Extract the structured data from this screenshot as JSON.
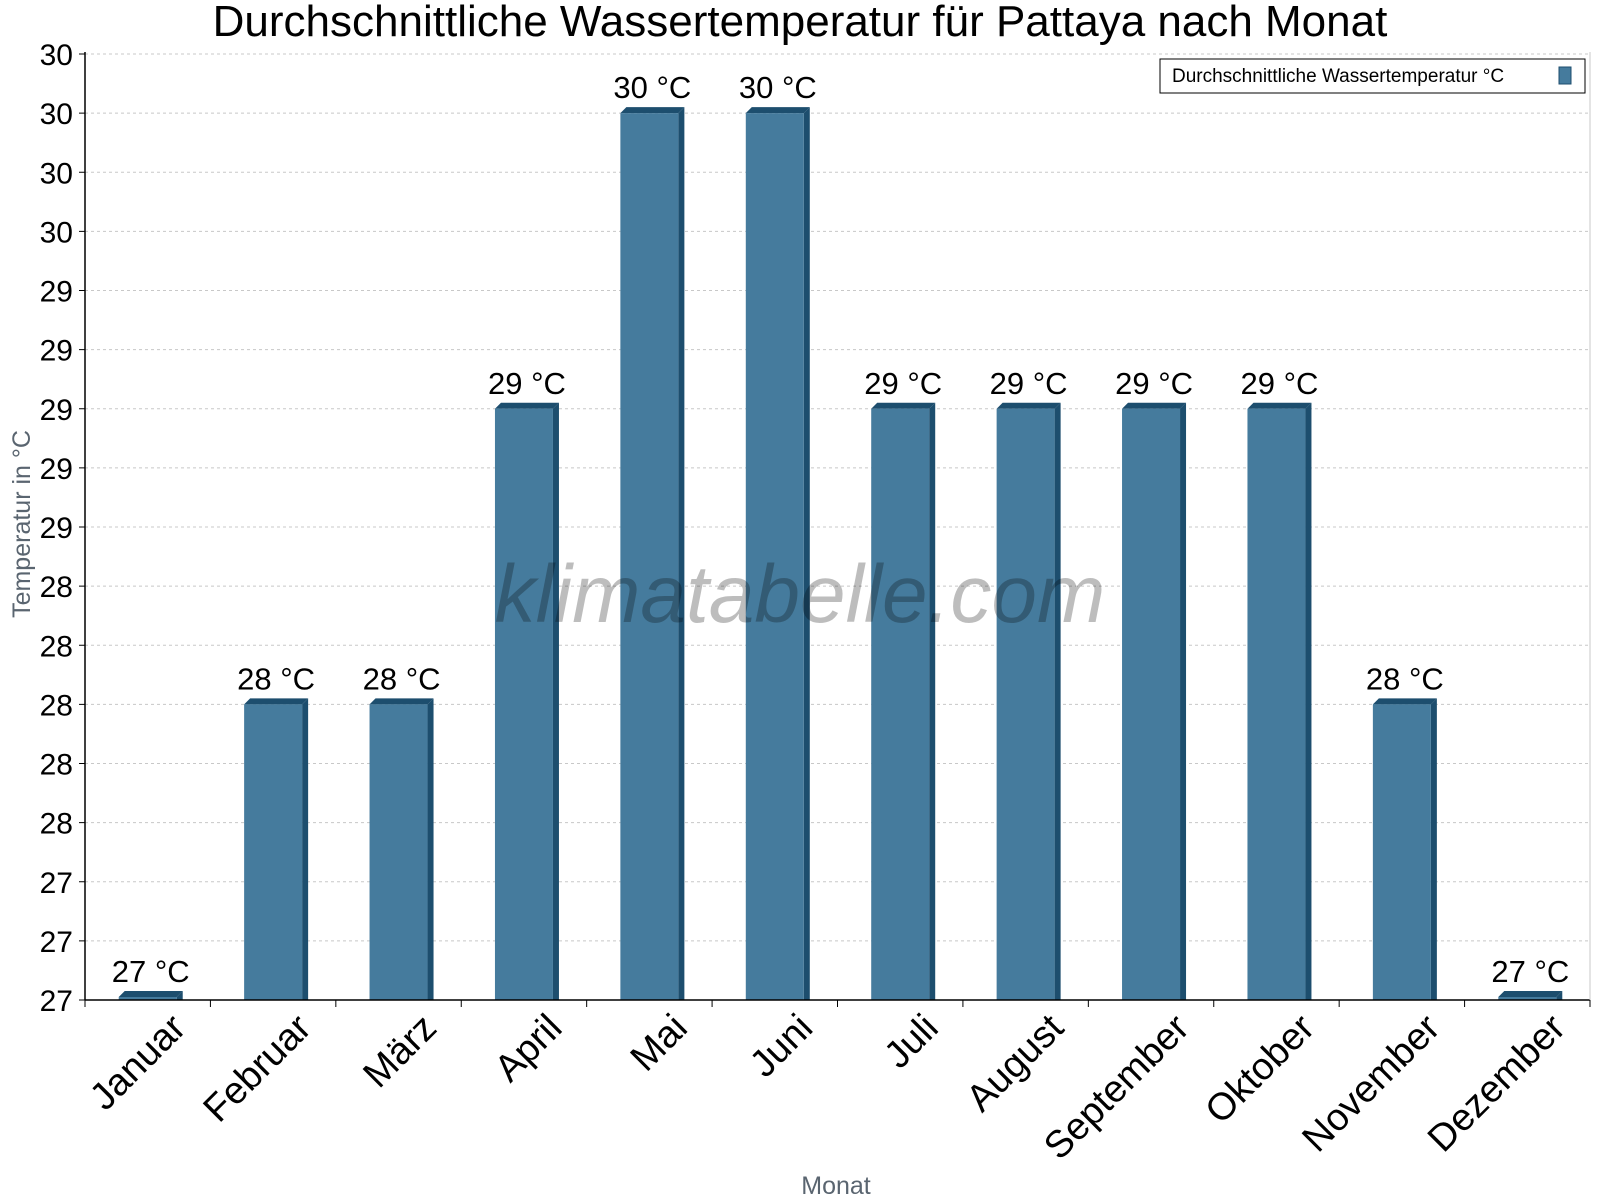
{
  "chart_data": {
    "type": "bar",
    "title": "Durchschnittliche Wassertemperatur für Pattaya nach Monat",
    "xlabel": "Monat",
    "ylabel": "Temperatur in °C",
    "categories": [
      "Januar",
      "Februar",
      "März",
      "April",
      "Mai",
      "Juni",
      "Juli",
      "August",
      "September",
      "Oktober",
      "November",
      "Dezember"
    ],
    "series": [
      {
        "name": "Durchschnittliche Wassertemperatur °C",
        "values": [
          27,
          28,
          28,
          29,
          30,
          30,
          29,
          29,
          29,
          29,
          28,
          27
        ],
        "value_labels": [
          "27 °C",
          "28 °C",
          "28 °C",
          "29 °C",
          "30 °C",
          "30 °C",
          "29 °C",
          "29 °C",
          "29 °C",
          "29 °C",
          "28 °C",
          "27 °C"
        ]
      }
    ],
    "ylim": [
      27,
      30.2
    ],
    "ytick_values": [
      27,
      27.2,
      27.4,
      27.6,
      27.8,
      28,
      28.2,
      28.4,
      28.6,
      28.8,
      29,
      29.2,
      29.4,
      29.6,
      29.8,
      30,
      30.2
    ],
    "ytick_labels": [
      "27",
      "27",
      "27",
      "28",
      "28",
      "28",
      "28",
      "28",
      "29",
      "29",
      "29",
      "29",
      "29",
      "30",
      "30",
      "30",
      "30"
    ],
    "grid": true,
    "legend_position": "top-right",
    "colors": {
      "bar_face": "#457b9d",
      "bar_side": "#1d4e6e",
      "grid": "#c8c8c8",
      "axis": "#000000"
    }
  },
  "watermark": "klimatabelle.com"
}
